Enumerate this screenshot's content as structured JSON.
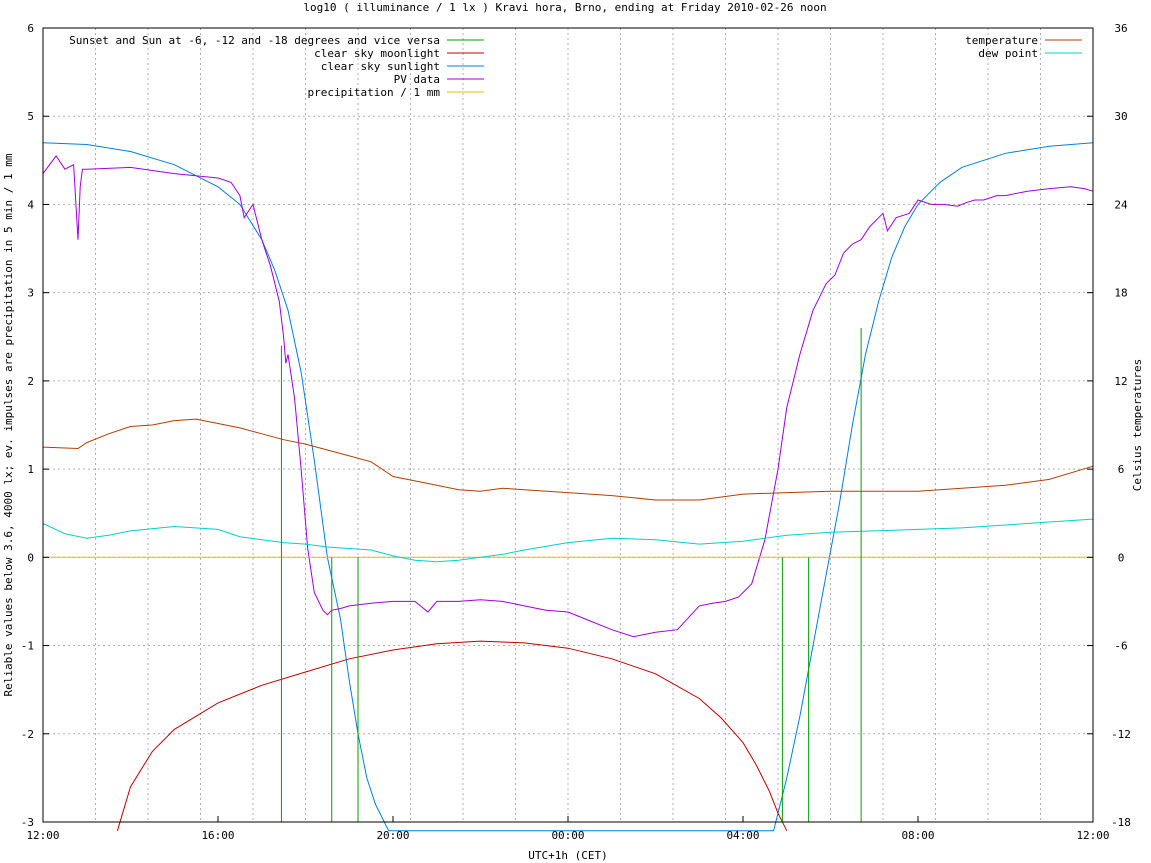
{
  "chart_data": {
    "type": "line",
    "title": "log10 ( illuminance / 1 lx ) Kravi hora, Brno, ending at Friday 2010-02-26 noon",
    "xlabel": "UTC+1h (CET)",
    "ylabel": "Reliable values below 3.6, 4000 lx; ev. impulses are precipitation in 5 min / 1 mm",
    "y2label": "Celsius temperatures",
    "xlim": [
      0,
      24
    ],
    "ylim": [
      -3,
      6
    ],
    "y2lim": [
      -18,
      36
    ],
    "grid": true,
    "x_ticks": [
      {
        "h": 0,
        "label": "12:00"
      },
      {
        "h": 4,
        "label": "16:00"
      },
      {
        "h": 8,
        "label": "20:00"
      },
      {
        "h": 12,
        "label": "00:00"
      },
      {
        "h": 16,
        "label": "04:00"
      },
      {
        "h": 20,
        "label": "08:00"
      },
      {
        "h": 24,
        "label": "12:00"
      }
    ],
    "y_ticks": [
      {
        "v": -3,
        "label": "-3"
      },
      {
        "v": -2,
        "label": "-2"
      },
      {
        "v": -1,
        "label": "-1"
      },
      {
        "v": 0,
        "label": "0"
      },
      {
        "v": 1,
        "label": "1"
      },
      {
        "v": 2,
        "label": "2"
      },
      {
        "v": 3,
        "label": "3"
      },
      {
        "v": 4,
        "label": "4"
      },
      {
        "v": 5,
        "label": "5"
      },
      {
        "v": 6,
        "label": "6"
      }
    ],
    "y2_ticks": [
      {
        "v": -18,
        "label": "-18"
      },
      {
        "v": -12,
        "label": "-12"
      },
      {
        "v": -6,
        "label": "-6"
      },
      {
        "v": 0,
        "label": "0"
      },
      {
        "v": 6,
        "label": "6"
      },
      {
        "v": 12,
        "label": "12"
      },
      {
        "v": 18,
        "label": "18"
      },
      {
        "v": 24,
        "label": "24"
      },
      {
        "v": 30,
        "label": "30"
      },
      {
        "v": 36,
        "label": "36"
      }
    ],
    "minor_grid_x": [
      1.2,
      2.4,
      3.6,
      4.8,
      6.0,
      7.2,
      8.4,
      9.6,
      10.8,
      12.0,
      13.2,
      14.4,
      15.6,
      16.8,
      18.0,
      19.2,
      20.4,
      21.6,
      22.8
    ],
    "legend_left": [
      {
        "name": "Sunset and Sun at -6, -12 and -18 degrees and vice versa",
        "color": "#00a000"
      },
      {
        "name": "clear sky moonlight",
        "color": "#c00000"
      },
      {
        "name": "clear sky sunlight",
        "color": "#0080e0"
      },
      {
        "name": "PV data",
        "color": "#a000e0"
      },
      {
        "name": "precipitation / 1 mm",
        "color": "#e0c000"
      }
    ],
    "legend_right": [
      {
        "name": "temperature",
        "color": "#b04000"
      },
      {
        "name": "dew point",
        "color": "#00d0d0"
      }
    ],
    "sun_events": [
      {
        "h": 5.45,
        "top": 2.4
      },
      {
        "h": 6.6,
        "top": 0
      },
      {
        "h": 7.2,
        "top": 0
      },
      {
        "h": 16.9,
        "top": 0
      },
      {
        "h": 17.5,
        "top": 0
      },
      {
        "h": 18.7,
        "top": 2.6
      }
    ],
    "series": [
      {
        "name": "clear sky sunlight",
        "axis": "y",
        "color": "#0080e0",
        "x": [
          0,
          1,
          2,
          3,
          4,
          4.5,
          5,
          5.3,
          5.6,
          5.9,
          6.2,
          6.5,
          6.8,
          7.0,
          7.2,
          7.4,
          7.6,
          7.8,
          7.9,
          16.7,
          16.8,
          17.0,
          17.3,
          17.6,
          17.9,
          18.2,
          18.5,
          18.8,
          19.1,
          19.4,
          19.7,
          20.0,
          20.5,
          21,
          22,
          23,
          24
        ],
        "values": [
          4.7,
          4.68,
          4.6,
          4.45,
          4.2,
          4.0,
          3.6,
          3.25,
          2.8,
          2.1,
          1.1,
          0.0,
          -0.7,
          -1.4,
          -2.0,
          -2.5,
          -2.8,
          -3.0,
          -3.1,
          -3.1,
          -2.9,
          -2.5,
          -1.8,
          -1.0,
          -0.2,
          0.6,
          1.5,
          2.3,
          2.9,
          3.4,
          3.75,
          4.0,
          4.25,
          4.42,
          4.58,
          4.66,
          4.7
        ]
      },
      {
        "name": "clear sky moonlight",
        "axis": "y",
        "color": "#c00000",
        "x": [
          1.7,
          2,
          2.5,
          3,
          4,
          5,
          6,
          7,
          8,
          9,
          10,
          11,
          12,
          13,
          14,
          15,
          15.5,
          16,
          16.3,
          16.6,
          16.8,
          17.0
        ],
        "values": [
          -3.1,
          -2.6,
          -2.2,
          -1.95,
          -1.65,
          -1.45,
          -1.3,
          -1.15,
          -1.05,
          -0.98,
          -0.95,
          -0.97,
          -1.03,
          -1.15,
          -1.32,
          -1.6,
          -1.82,
          -2.1,
          -2.35,
          -2.65,
          -2.9,
          -3.1
        ]
      },
      {
        "name": "PV data",
        "axis": "y",
        "color": "#a000e0",
        "x": [
          0,
          0.3,
          0.5,
          0.7,
          0.8,
          0.85,
          0.9,
          1,
          2,
          3,
          4,
          4.3,
          4.5,
          4.6,
          4.8,
          5,
          5.2,
          5.4,
          5.5,
          5.55,
          5.6,
          5.75,
          5.9,
          6.05,
          6.2,
          6.4,
          6.5,
          6.6,
          6.8,
          7,
          7.5,
          8,
          8.5,
          8.8,
          9,
          9.2,
          9.5,
          10,
          10.5,
          11,
          11.5,
          12,
          12.5,
          13,
          13.5,
          14,
          14.5,
          15,
          15.3,
          15.6,
          15.9,
          16.2,
          16.5,
          16.8,
          17,
          17.3,
          17.6,
          17.9,
          18.1,
          18.3,
          18.5,
          18.7,
          18.9,
          19.1,
          19.2,
          19.3,
          19.5,
          19.8,
          20,
          20.3,
          20.6,
          20.9,
          21.1,
          21.3,
          21.5,
          21.8,
          22,
          22.5,
          23,
          23.5,
          23.8,
          24
        ],
        "values": [
          4.35,
          4.55,
          4.4,
          4.45,
          3.6,
          4.2,
          4.4,
          4.4,
          4.42,
          4.35,
          4.3,
          4.25,
          4.1,
          3.85,
          4.0,
          3.6,
          3.3,
          2.9,
          2.5,
          2.2,
          2.3,
          1.8,
          1.0,
          0.1,
          -0.4,
          -0.6,
          -0.65,
          -0.6,
          -0.58,
          -0.55,
          -0.52,
          -0.5,
          -0.5,
          -0.62,
          -0.5,
          -0.5,
          -0.5,
          -0.48,
          -0.5,
          -0.55,
          -0.6,
          -0.62,
          -0.72,
          -0.82,
          -0.9,
          -0.85,
          -0.82,
          -0.55,
          -0.52,
          -0.5,
          -0.45,
          -0.3,
          0.2,
          1.0,
          1.7,
          2.3,
          2.8,
          3.1,
          3.2,
          3.45,
          3.55,
          3.6,
          3.75,
          3.85,
          3.9,
          3.7,
          3.85,
          3.9,
          4.05,
          4.0,
          4.0,
          3.98,
          4.02,
          4.05,
          4.05,
          4.1,
          4.1,
          4.15,
          4.18,
          4.2,
          4.18,
          4.15
        ]
      },
      {
        "name": "precipitation / 1 mm",
        "axis": "y",
        "color": "#e0c000",
        "x": [
          0,
          24
        ],
        "values": [
          0,
          0
        ]
      },
      {
        "name": "temperature",
        "axis": "y2",
        "color": "#b04000",
        "x": [
          0,
          0.8,
          1,
          1.5,
          2,
          2.5,
          3,
          3.5,
          4,
          4.5,
          5,
          5.5,
          6,
          6.5,
          7,
          7.5,
          8,
          8.5,
          9,
          9.5,
          10,
          10.5,
          11,
          12,
          13,
          14,
          15,
          16,
          17,
          18,
          19,
          20,
          21,
          22,
          23,
          24
        ],
        "values": [
          7.5,
          7.4,
          7.8,
          8.4,
          8.9,
          9.0,
          9.3,
          9.4,
          9.1,
          8.8,
          8.4,
          8.0,
          7.7,
          7.3,
          6.9,
          6.5,
          5.5,
          5.2,
          4.9,
          4.6,
          4.5,
          4.7,
          4.6,
          4.4,
          4.2,
          3.9,
          3.9,
          4.3,
          4.4,
          4.5,
          4.5,
          4.5,
          4.7,
          4.9,
          5.3,
          6.2
        ]
      },
      {
        "name": "dew point",
        "axis": "y2",
        "color": "#00d0d0",
        "x": [
          0,
          0.5,
          1,
          1.5,
          2,
          3,
          4,
          4.5,
          5,
          5.5,
          6,
          6.5,
          7,
          7.5,
          8,
          8.5,
          9,
          9.5,
          10,
          10.5,
          11,
          12,
          13,
          14,
          15,
          16,
          17,
          18,
          19,
          20,
          21,
          22,
          23,
          24
        ],
        "values": [
          2.3,
          1.6,
          1.3,
          1.5,
          1.8,
          2.1,
          1.9,
          1.4,
          1.2,
          1.0,
          0.9,
          0.7,
          0.6,
          0.5,
          0.1,
          -0.2,
          -0.3,
          -0.2,
          0.0,
          0.2,
          0.5,
          1.0,
          1.3,
          1.2,
          0.9,
          1.1,
          1.5,
          1.7,
          1.8,
          1.9,
          2.0,
          2.2,
          2.4,
          2.6
        ]
      }
    ]
  }
}
